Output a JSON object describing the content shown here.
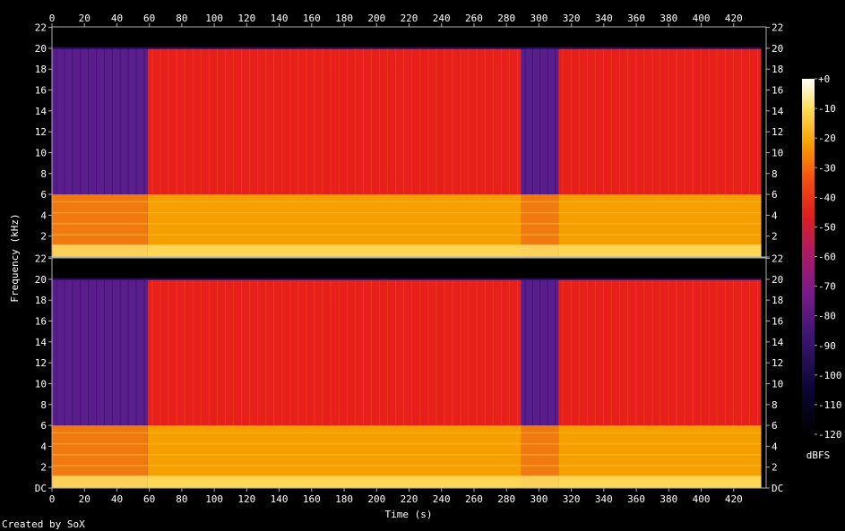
{
  "chart_data": {
    "type": "heatmap",
    "title": "",
    "xlabel": "Time (s)",
    "ylabel": "Frequency (kHz)",
    "credit": "Created by SoX",
    "colorbar_label": "dBFS",
    "x_ticks": [
      0,
      20,
      40,
      60,
      80,
      100,
      120,
      140,
      160,
      180,
      200,
      220,
      240,
      260,
      280,
      300,
      320,
      340,
      360,
      380,
      400,
      420
    ],
    "xlim": [
      0,
      440
    ],
    "y_ticks": [
      {
        "value": 0,
        "label": "DC"
      },
      {
        "value": 2,
        "label": "2"
      },
      {
        "value": 4,
        "label": "4"
      },
      {
        "value": 6,
        "label": "6"
      },
      {
        "value": 8,
        "label": "8"
      },
      {
        "value": 10,
        "label": "10"
      },
      {
        "value": 12,
        "label": "12"
      },
      {
        "value": 14,
        "label": "14"
      },
      {
        "value": 16,
        "label": "16"
      },
      {
        "value": 18,
        "label": "18"
      },
      {
        "value": 20,
        "label": "20"
      },
      {
        "value": 22,
        "label": "22"
      }
    ],
    "ylim": [
      0,
      22.05
    ],
    "colorbar_ticks": [
      "+0",
      "-10",
      "-20",
      "-30",
      "-40",
      "-50",
      "-60",
      "-70",
      "-80",
      "-90",
      "-100",
      "-110",
      "-120"
    ],
    "colorbar_range": [
      -120,
      0
    ],
    "channels": 2,
    "segments": [
      {
        "start": 0,
        "end": 59,
        "content_cutoff_khz": 20.0,
        "lowband_cutoff_khz": 6.0,
        "upper_level_dbfs": -85
      },
      {
        "start": 59,
        "end": 289,
        "content_cutoff_khz": 20.0,
        "lowband_cutoff_khz": 6.0,
        "upper_level_dbfs": -55
      },
      {
        "start": 289,
        "end": 312,
        "content_cutoff_khz": 20.0,
        "lowband_cutoff_khz": 6.0,
        "upper_level_dbfs": -85
      },
      {
        "start": 312,
        "end": 437,
        "content_cutoff_khz": 20.0,
        "lowband_cutoff_khz": 6.0,
        "upper_level_dbfs": -55
      }
    ],
    "colors": {
      "background": "#000000",
      "axis": "#b0b0b0",
      "text": "#ffffff",
      "quiet": "#5a1e8c",
      "loud_upper": "#e8201c",
      "low_band": "#f5a000",
      "bass": "#ffe066"
    }
  }
}
